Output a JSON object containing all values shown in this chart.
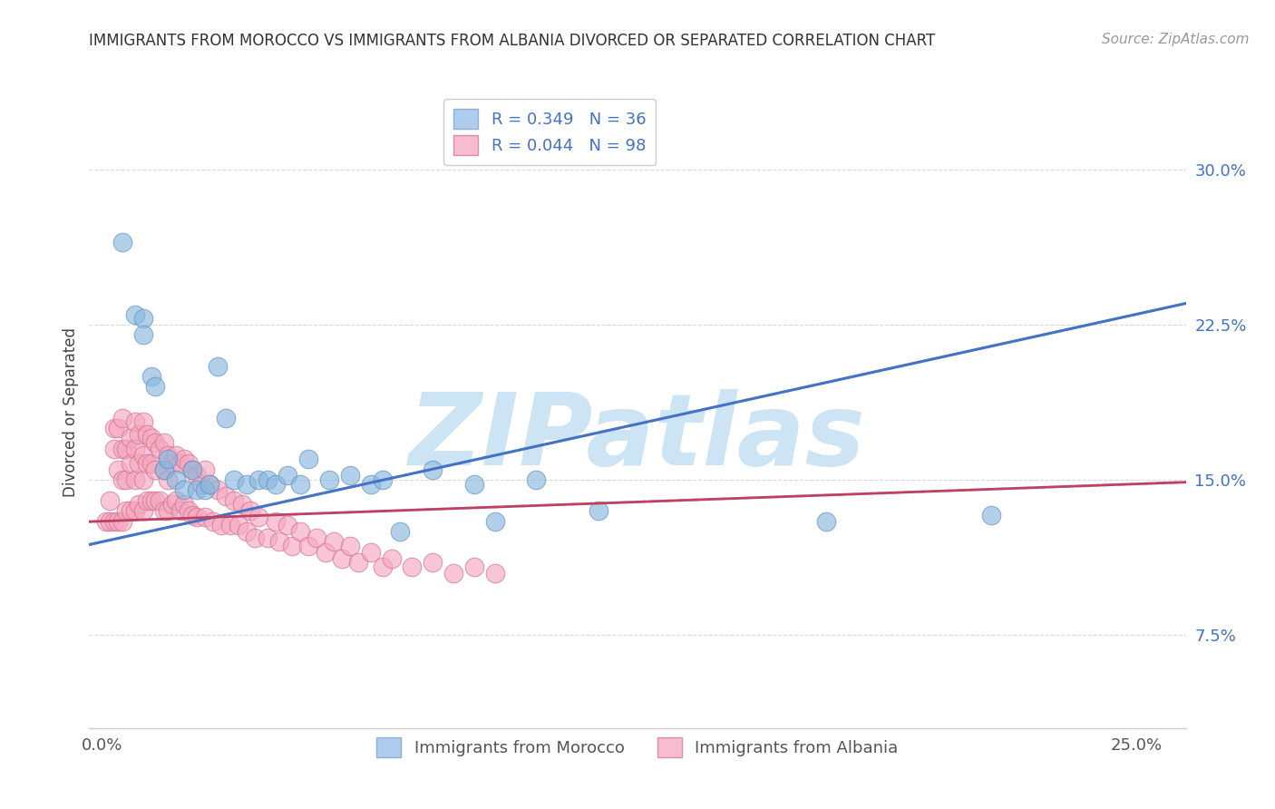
{
  "title": "IMMIGRANTS FROM MOROCCO VS IMMIGRANTS FROM ALBANIA DIVORCED OR SEPARATED CORRELATION CHART",
  "source": "Source: ZipAtlas.com",
  "ylabel": "Divorced or Separated",
  "yticks": [
    0.075,
    0.15,
    0.225,
    0.3
  ],
  "ytick_labels": [
    "7.5%",
    "15.0%",
    "22.5%",
    "30.0%"
  ],
  "xlim": [
    -0.003,
    0.262
  ],
  "ylim": [
    0.03,
    0.335
  ],
  "morocco_color": "#89b8e0",
  "morocco_edge": "#6090c0",
  "albania_color": "#f5a8c0",
  "albania_edge": "#d07090",
  "trend_blue": "#4472c4",
  "trend_pink": "#c04060",
  "trend_dash": "#c0c8d8",
  "watermark_color": "#cce4f4",
  "grid_color": "#d0d0d0",
  "background": "#ffffff",
  "morocco_x": [
    0.005,
    0.008,
    0.01,
    0.01,
    0.012,
    0.013,
    0.015,
    0.016,
    0.018,
    0.02,
    0.022,
    0.023,
    0.025,
    0.026,
    0.028,
    0.03,
    0.032,
    0.035,
    0.038,
    0.04,
    0.042,
    0.045,
    0.048,
    0.05,
    0.055,
    0.06,
    0.065,
    0.068,
    0.072,
    0.08,
    0.09,
    0.095,
    0.105,
    0.12,
    0.175,
    0.215
  ],
  "morocco_y": [
    0.265,
    0.23,
    0.228,
    0.22,
    0.2,
    0.195,
    0.155,
    0.16,
    0.15,
    0.145,
    0.155,
    0.145,
    0.145,
    0.148,
    0.205,
    0.18,
    0.15,
    0.148,
    0.15,
    0.15,
    0.148,
    0.152,
    0.148,
    0.16,
    0.15,
    0.152,
    0.148,
    0.15,
    0.125,
    0.155,
    0.148,
    0.13,
    0.15,
    0.135,
    0.13,
    0.133
  ],
  "albania_x": [
    0.001,
    0.002,
    0.002,
    0.003,
    0.003,
    0.003,
    0.004,
    0.004,
    0.004,
    0.005,
    0.005,
    0.005,
    0.005,
    0.006,
    0.006,
    0.006,
    0.007,
    0.007,
    0.007,
    0.008,
    0.008,
    0.008,
    0.008,
    0.009,
    0.009,
    0.009,
    0.01,
    0.01,
    0.01,
    0.01,
    0.011,
    0.011,
    0.011,
    0.012,
    0.012,
    0.012,
    0.013,
    0.013,
    0.013,
    0.014,
    0.014,
    0.015,
    0.015,
    0.015,
    0.016,
    0.016,
    0.016,
    0.017,
    0.017,
    0.018,
    0.018,
    0.019,
    0.019,
    0.02,
    0.02,
    0.021,
    0.021,
    0.022,
    0.022,
    0.023,
    0.023,
    0.024,
    0.025,
    0.025,
    0.026,
    0.027,
    0.028,
    0.029,
    0.03,
    0.031,
    0.032,
    0.033,
    0.034,
    0.035,
    0.036,
    0.037,
    0.038,
    0.04,
    0.042,
    0.043,
    0.045,
    0.046,
    0.048,
    0.05,
    0.052,
    0.054,
    0.056,
    0.058,
    0.06,
    0.062,
    0.065,
    0.068,
    0.07,
    0.075,
    0.08,
    0.085,
    0.09,
    0.095
  ],
  "albania_y": [
    0.13,
    0.14,
    0.13,
    0.175,
    0.165,
    0.13,
    0.175,
    0.155,
    0.13,
    0.18,
    0.165,
    0.15,
    0.13,
    0.165,
    0.15,
    0.135,
    0.17,
    0.158,
    0.135,
    0.178,
    0.165,
    0.15,
    0.135,
    0.172,
    0.158,
    0.138,
    0.178,
    0.162,
    0.15,
    0.135,
    0.172,
    0.158,
    0.14,
    0.17,
    0.158,
    0.14,
    0.168,
    0.155,
    0.14,
    0.165,
    0.14,
    0.168,
    0.155,
    0.135,
    0.162,
    0.15,
    0.135,
    0.158,
    0.138,
    0.162,
    0.14,
    0.158,
    0.135,
    0.16,
    0.138,
    0.158,
    0.135,
    0.155,
    0.133,
    0.152,
    0.132,
    0.148,
    0.155,
    0.132,
    0.148,
    0.13,
    0.145,
    0.128,
    0.142,
    0.128,
    0.14,
    0.128,
    0.138,
    0.125,
    0.135,
    0.122,
    0.132,
    0.122,
    0.13,
    0.12,
    0.128,
    0.118,
    0.125,
    0.118,
    0.122,
    0.115,
    0.12,
    0.112,
    0.118,
    0.11,
    0.115,
    0.108,
    0.112,
    0.108,
    0.11,
    0.105,
    0.108,
    0.105
  ],
  "legend1_label_R": "R = 0.349",
  "legend1_label_N": "N = 36",
  "legend2_label_R": "R = 0.044",
  "legend2_label_N": "N = 98",
  "bottom_legend1": "Immigrants from Morocco",
  "bottom_legend2": "Immigrants from Albania"
}
